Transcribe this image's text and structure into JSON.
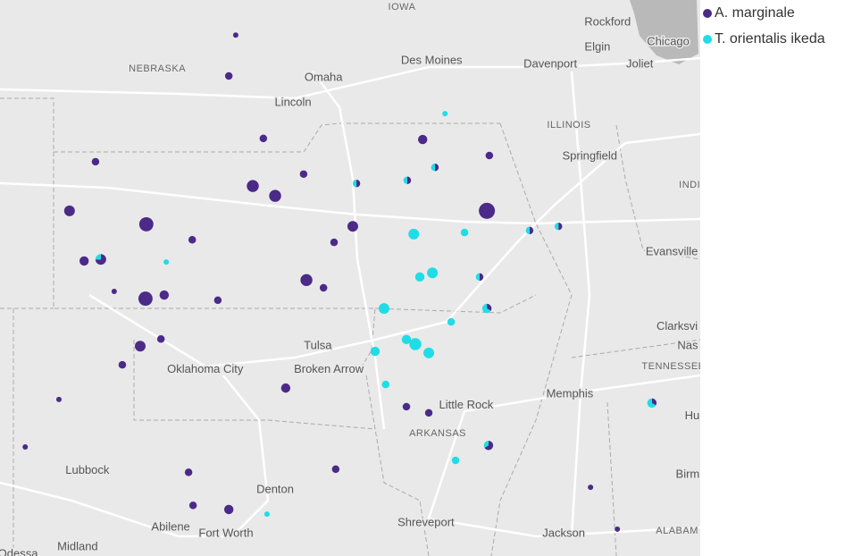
{
  "map": {
    "view": {
      "lon_range": [
        -104,
        -86.77
      ],
      "lat_range": [
        31.93,
        42.69
      ]
    },
    "places": [
      {
        "name": "IOWA",
        "lon": -94.11,
        "lat": 42.55,
        "kind": "state"
      },
      {
        "name": "NEBRASKA",
        "lon": -100.13,
        "lat": 41.36,
        "kind": "state"
      },
      {
        "name": "Omaha",
        "lon": -96.04,
        "lat": 41.18,
        "kind": "city"
      },
      {
        "name": "Lincoln",
        "lon": -96.79,
        "lat": 40.7,
        "kind": "city"
      },
      {
        "name": "Des Moines",
        "lon": -93.38,
        "lat": 41.51,
        "kind": "city"
      },
      {
        "name": "Davenport",
        "lon": -90.46,
        "lat": 41.44,
        "kind": "city"
      },
      {
        "name": "Rockford",
        "lon": -89.05,
        "lat": 42.26,
        "kind": "city"
      },
      {
        "name": "Elgin",
        "lon": -89.3,
        "lat": 41.77,
        "kind": "city"
      },
      {
        "name": "Joliet",
        "lon": -88.26,
        "lat": 41.44,
        "kind": "city"
      },
      {
        "name": "Chicago",
        "lon": -87.56,
        "lat": 41.88,
        "kind": "city"
      },
      {
        "name": "ILLINOIS",
        "lon": -90.0,
        "lat": 40.27,
        "kind": "state"
      },
      {
        "name": "Springfield",
        "lon": -89.49,
        "lat": 39.66,
        "kind": "city"
      },
      {
        "name": "INDI",
        "lon": -87.03,
        "lat": 39.11,
        "kind": "state"
      },
      {
        "name": "Evansville",
        "lon": -87.47,
        "lat": 37.81,
        "kind": "city"
      },
      {
        "name": "Clarksvi",
        "lon": -87.34,
        "lat": 36.37,
        "kind": "city"
      },
      {
        "name": "Nas",
        "lon": -87.08,
        "lat": 35.99,
        "kind": "city"
      },
      {
        "name": "TENNESSEE",
        "lon": -87.43,
        "lat": 35.6,
        "kind": "state"
      },
      {
        "name": "Memphis",
        "lon": -89.98,
        "lat": 35.06,
        "kind": "city"
      },
      {
        "name": "Hu",
        "lon": -86.97,
        "lat": 34.64,
        "kind": "city"
      },
      {
        "name": "Birm",
        "lon": -87.08,
        "lat": 33.5,
        "kind": "city"
      },
      {
        "name": "ALABAM",
        "lon": -87.34,
        "lat": 32.41,
        "kind": "state"
      },
      {
        "name": "Jackson",
        "lon": -90.13,
        "lat": 32.36,
        "kind": "city"
      },
      {
        "name": "Shreveport",
        "lon": -93.52,
        "lat": 32.57,
        "kind": "city"
      },
      {
        "name": "Little Rock",
        "lon": -92.53,
        "lat": 34.84,
        "kind": "city"
      },
      {
        "name": "ARKANSAS",
        "lon": -93.23,
        "lat": 34.3,
        "kind": "state"
      },
      {
        "name": "Tulsa",
        "lon": -96.18,
        "lat": 35.99,
        "kind": "city"
      },
      {
        "name": "Broken Arrow",
        "lon": -95.91,
        "lat": 35.54,
        "kind": "city"
      },
      {
        "name": "Oklahoma City",
        "lon": -98.95,
        "lat": 35.54,
        "kind": "city"
      },
      {
        "name": "Denton",
        "lon": -97.23,
        "lat": 33.21,
        "kind": "city"
      },
      {
        "name": "Fort Worth",
        "lon": -98.44,
        "lat": 32.36,
        "kind": "city"
      },
      {
        "name": "Abilene",
        "lon": -99.8,
        "lat": 32.48,
        "kind": "city"
      },
      {
        "name": "Lubbock",
        "lon": -101.85,
        "lat": 33.58,
        "kind": "city"
      },
      {
        "name": "Midland",
        "lon": -102.09,
        "lat": 32.1,
        "kind": "city"
      },
      {
        "name": "Odessa",
        "lon": -103.56,
        "lat": 31.96,
        "kind": "city"
      }
    ],
    "series": [
      {
        "name": "A. marginale",
        "color": "#4b2a88"
      },
      {
        "name": "T. orientalis ikeda",
        "color": "#1fdde6"
      }
    ],
    "points": [
      [
        -98.2,
        42.01,
        1,
        0
      ],
      [
        -98.37,
        41.22,
        2,
        0
      ],
      [
        -92.02,
        38.61,
        9,
        0
      ],
      [
        -100.4,
        38.35,
        7,
        0
      ],
      [
        -100.42,
        36.91,
        7,
        0
      ],
      [
        -102.29,
        38.61,
        4,
        0
      ],
      [
        -100.55,
        35.99,
        4,
        0
      ],
      [
        -101.65,
        39.56,
        2,
        0
      ],
      [
        -97.78,
        39.09,
        5,
        0
      ],
      [
        -97.23,
        38.9,
        5,
        0
      ],
      [
        -95.32,
        38.31,
        4,
        0
      ],
      [
        -96.46,
        37.27,
        5,
        0
      ],
      [
        -96.04,
        37.12,
        2,
        0
      ],
      [
        -96.97,
        35.18,
        3,
        0
      ],
      [
        -99.36,
        33.55,
        2,
        0
      ],
      [
        -99.25,
        32.91,
        2,
        0
      ],
      [
        -98.37,
        32.83,
        3,
        0
      ],
      [
        -95.74,
        33.61,
        2,
        0
      ],
      [
        -103.38,
        34.04,
        1,
        0
      ],
      [
        -102.55,
        34.96,
        1,
        0
      ],
      [
        -100.99,
        35.63,
        2,
        0
      ],
      [
        -100.04,
        36.13,
        2,
        0
      ],
      [
        -101.93,
        37.64,
        3,
        0
      ],
      [
        -99.96,
        36.98,
        3,
        0
      ],
      [
        -98.64,
        36.88,
        2,
        0
      ],
      [
        -97.52,
        40.01,
        2,
        0
      ],
      [
        -93.6,
        39.99,
        3,
        0
      ],
      [
        -91.96,
        39.68,
        2,
        0
      ],
      [
        -89.47,
        33.26,
        1,
        0
      ],
      [
        -88.81,
        32.45,
        1,
        0
      ],
      [
        -93.45,
        34.7,
        2,
        0
      ],
      [
        -94.0,
        34.82,
        2,
        0
      ],
      [
        -95.78,
        38.0,
        2,
        0
      ],
      [
        -96.53,
        39.32,
        2,
        0
      ],
      [
        -99.27,
        38.05,
        2,
        0
      ],
      [
        -101.19,
        37.05,
        1,
        0
      ],
      [
        -93.05,
        40.49,
        0,
        1
      ],
      [
        -92.79,
        33.78,
        0,
        2
      ],
      [
        -97.43,
        32.74,
        0,
        1
      ],
      [
        -99.91,
        37.62,
        0,
        1
      ],
      [
        -93.82,
        38.16,
        0,
        4
      ],
      [
        -94.55,
        36.72,
        0,
        4
      ],
      [
        -93.78,
        36.03,
        0,
        5
      ],
      [
        -94.0,
        36.12,
        0,
        3
      ],
      [
        -93.45,
        35.86,
        0,
        4
      ],
      [
        -93.67,
        37.33,
        0,
        3
      ],
      [
        -93.36,
        37.41,
        0,
        4
      ],
      [
        -94.51,
        35.25,
        0,
        2
      ],
      [
        -94.77,
        35.89,
        0,
        3
      ],
      [
        -92.9,
        36.46,
        0,
        2
      ],
      [
        -92.57,
        38.19,
        0,
        2
      ],
      [
        -101.52,
        37.67,
        3,
        1
      ],
      [
        -91.98,
        34.07,
        2,
        1
      ],
      [
        -87.96,
        34.89,
        1,
        2
      ],
      [
        -90.26,
        38.31,
        1,
        1
      ],
      [
        -90.97,
        38.23,
        1,
        1
      ],
      [
        -93.98,
        39.2,
        1,
        1
      ],
      [
        -93.3,
        39.45,
        1,
        1
      ],
      [
        -95.23,
        39.14,
        1,
        1
      ],
      [
        -92.02,
        36.72,
        1,
        2
      ],
      [
        -92.2,
        37.33,
        1,
        1
      ]
    ]
  }
}
